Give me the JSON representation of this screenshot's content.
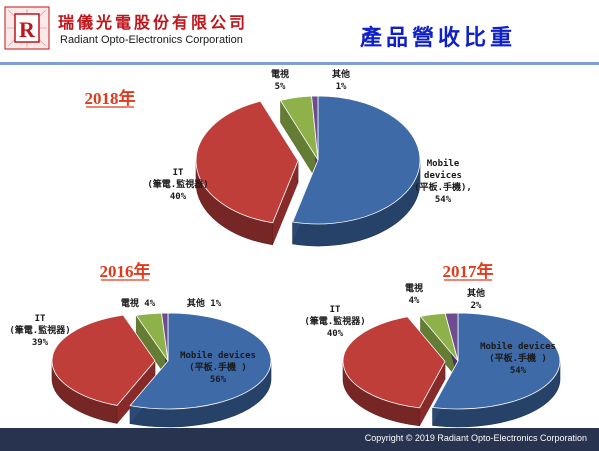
{
  "header": {
    "company_name_cn": "瑞儀光電股份有限公司",
    "company_name_en": "Radiant  Opto-Electronics  Corporation",
    "page_title": "產品營收比重"
  },
  "footer": {
    "copyright": "Copyright © 2019 Radiant Opto-Electronics Corporation"
  },
  "colors": {
    "mobile": "#3e6aa8",
    "it": "#bf3e3a",
    "tv": "#8fb14a",
    "other": "#6e4c8e",
    "year_label": "#e03a1a",
    "title": "#1020c8"
  },
  "chart_data": [
    {
      "type": "pie",
      "title": "2018年",
      "slices": [
        {
          "key": "mobile",
          "labels": [
            "Mobile",
            "devices",
            "(平板.手機),",
            "54%"
          ],
          "value": 54
        },
        {
          "key": "it",
          "labels": [
            "IT",
            "(筆電.監視器)",
            "40%"
          ],
          "value": 40
        },
        {
          "key": "tv",
          "labels": [
            "電視",
            "5%"
          ],
          "value": 5
        },
        {
          "key": "other",
          "labels": [
            "其他",
            "1%"
          ],
          "value": 1
        }
      ]
    },
    {
      "type": "pie",
      "title": "2016年",
      "slices": [
        {
          "key": "mobile",
          "labels": [
            "Mobile devices",
            "(平板.手機 )",
            "56%"
          ],
          "value": 56
        },
        {
          "key": "it",
          "labels": [
            "IT",
            "(筆電.監視器)",
            "39%"
          ],
          "value": 39
        },
        {
          "key": "tv",
          "labels": [
            "電視 4%"
          ],
          "value": 4
        },
        {
          "key": "other",
          "labels": [
            "其他 1%"
          ],
          "value": 1
        }
      ]
    },
    {
      "type": "pie",
      "title": "2017年",
      "slices": [
        {
          "key": "mobile",
          "labels": [
            "Mobile devices",
            "(平板.手機 )",
            "54%"
          ],
          "value": 54
        },
        {
          "key": "it",
          "labels": [
            "IT",
            "(筆電.監視器)",
            "40%"
          ],
          "value": 40
        },
        {
          "key": "tv",
          "labels": [
            "電視",
            "4%"
          ],
          "value": 4
        },
        {
          "key": "other",
          "labels": [
            "其他",
            "2%"
          ],
          "value": 2
        }
      ]
    }
  ]
}
